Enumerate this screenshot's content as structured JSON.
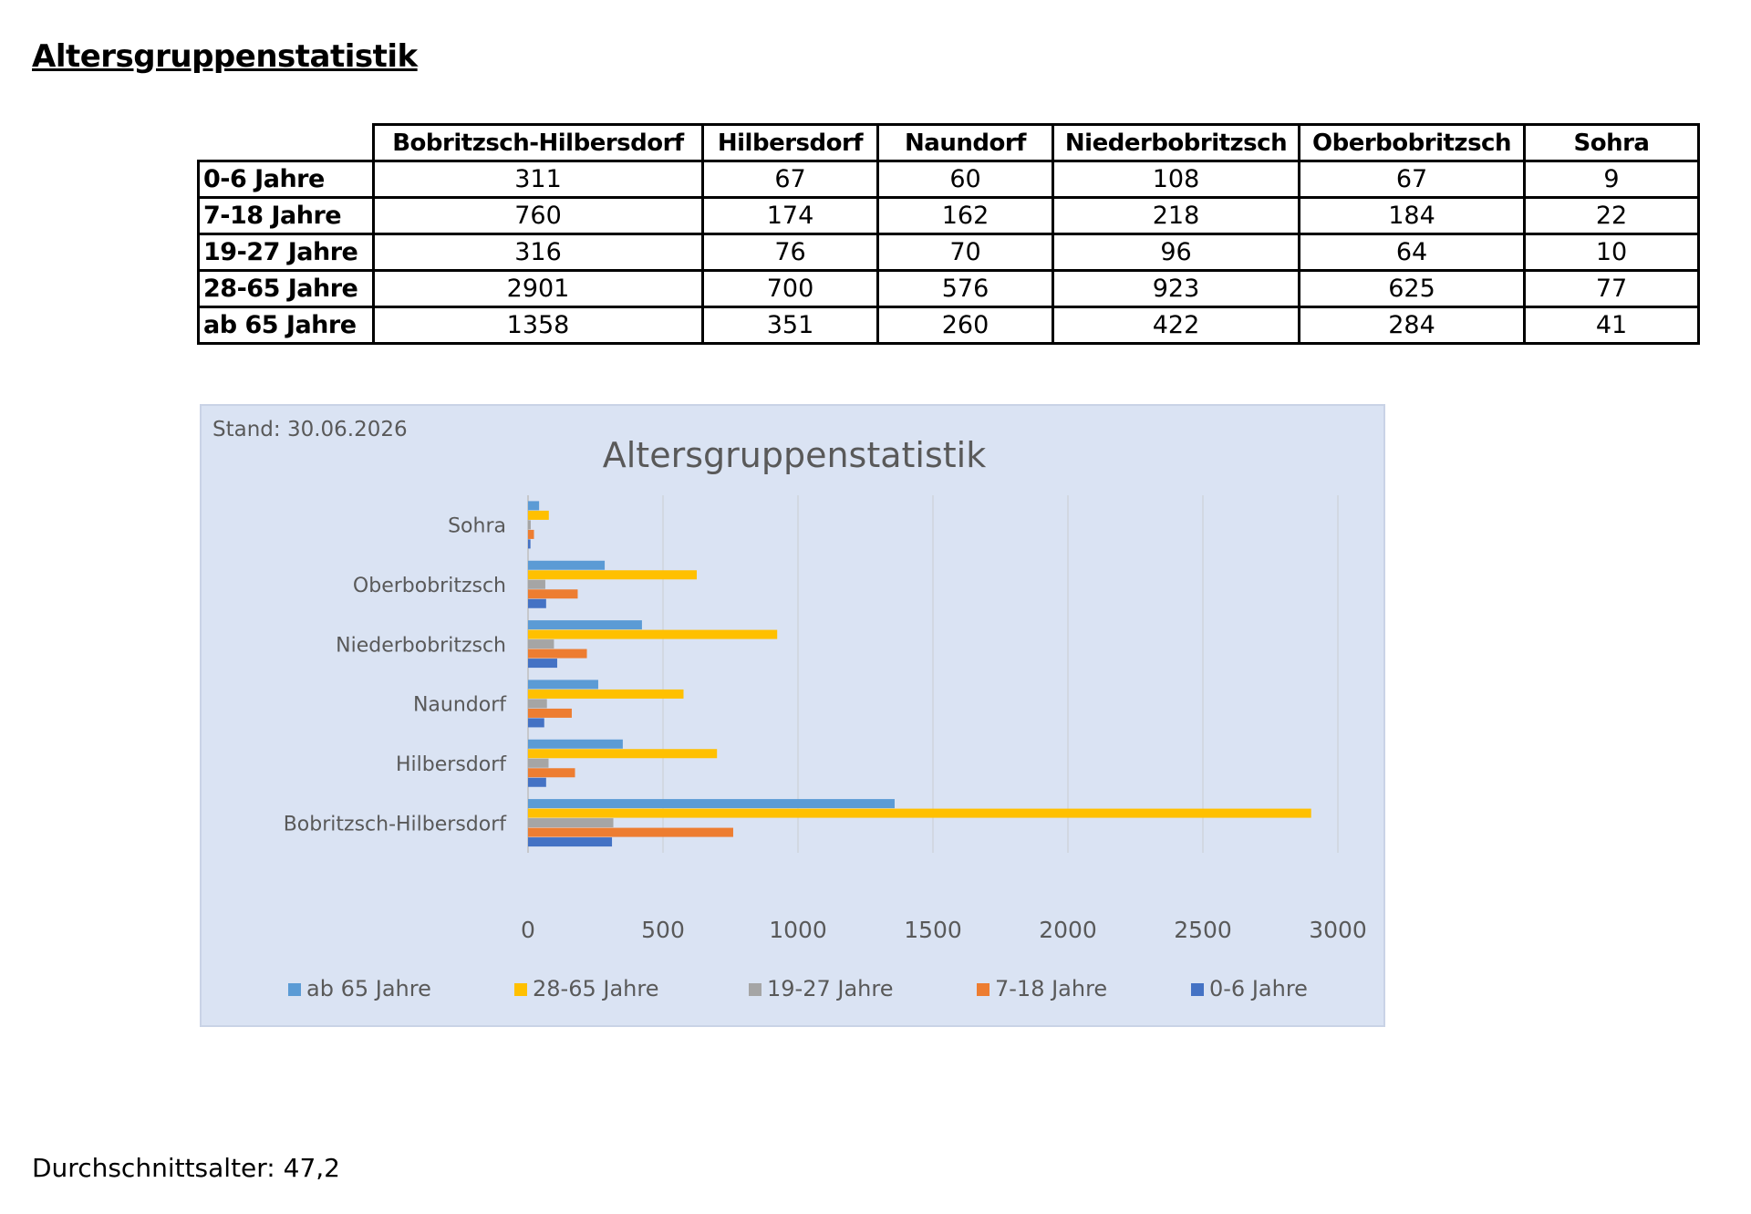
{
  "title": "Altersgruppenstatistik",
  "table": {
    "columns": [
      "Bobritzsch-Hilbersdorf",
      "Hilbersdorf",
      "Naundorf",
      "Niederbobritzsch",
      "Oberbobritzsch",
      "Sohra"
    ],
    "rows": [
      {
        "label": "0-6 Jahre",
        "values": [
          "311",
          "67",
          "60",
          "108",
          "67",
          "9"
        ]
      },
      {
        "label": "7-18 Jahre",
        "values": [
          "760",
          "174",
          "162",
          "218",
          "184",
          "22"
        ]
      },
      {
        "label": "19-27 Jahre",
        "values": [
          "316",
          "76",
          "70",
          "96",
          "64",
          "10"
        ]
      },
      {
        "label": "28-65 Jahre",
        "values": [
          "2901",
          "700",
          "576",
          "923",
          "625",
          "77"
        ]
      },
      {
        "label": "ab 65 Jahre",
        "values": [
          "1358",
          "351",
          "260",
          "422",
          "284",
          "41"
        ]
      }
    ]
  },
  "chart_data": {
    "type": "bar",
    "orientation": "horizontal",
    "note": "Stand: 30.06.2026",
    "title": "Altersgruppenstatistik",
    "categories": [
      "Bobritzsch-Hilbersdorf",
      "Hilbersdorf",
      "Naundorf",
      "Niederbobritzsch",
      "Oberbobritzsch",
      "Sohra"
    ],
    "series": [
      {
        "name": "0-6 Jahre",
        "color": "#4472c4",
        "values": [
          311,
          67,
          60,
          108,
          67,
          9
        ]
      },
      {
        "name": "7-18 Jahre",
        "color": "#ed7d31",
        "values": [
          760,
          174,
          162,
          218,
          184,
          22
        ]
      },
      {
        "name": "19-27 Jahre",
        "color": "#a5a5a5",
        "values": [
          316,
          76,
          70,
          96,
          64,
          10
        ]
      },
      {
        "name": "28-65 Jahre",
        "color": "#ffc000",
        "values": [
          2901,
          700,
          576,
          923,
          625,
          77
        ]
      },
      {
        "name": "ab 65 Jahre",
        "color": "#5b9bd5",
        "values": [
          1358,
          351,
          260,
          422,
          284,
          41
        ]
      }
    ],
    "legend_order": [
      "ab 65 Jahre",
      "28-65 Jahre",
      "19-27 Jahre",
      "7-18 Jahre",
      "0-6 Jahre"
    ],
    "legend_position": "bottom",
    "xlim": [
      0,
      3000
    ],
    "xticks": [
      0,
      500,
      1000,
      1500,
      2000,
      2500,
      3000
    ],
    "grid": true,
    "background": "#dae3f3"
  },
  "footer": "Durchschnittsalter: 47,2"
}
